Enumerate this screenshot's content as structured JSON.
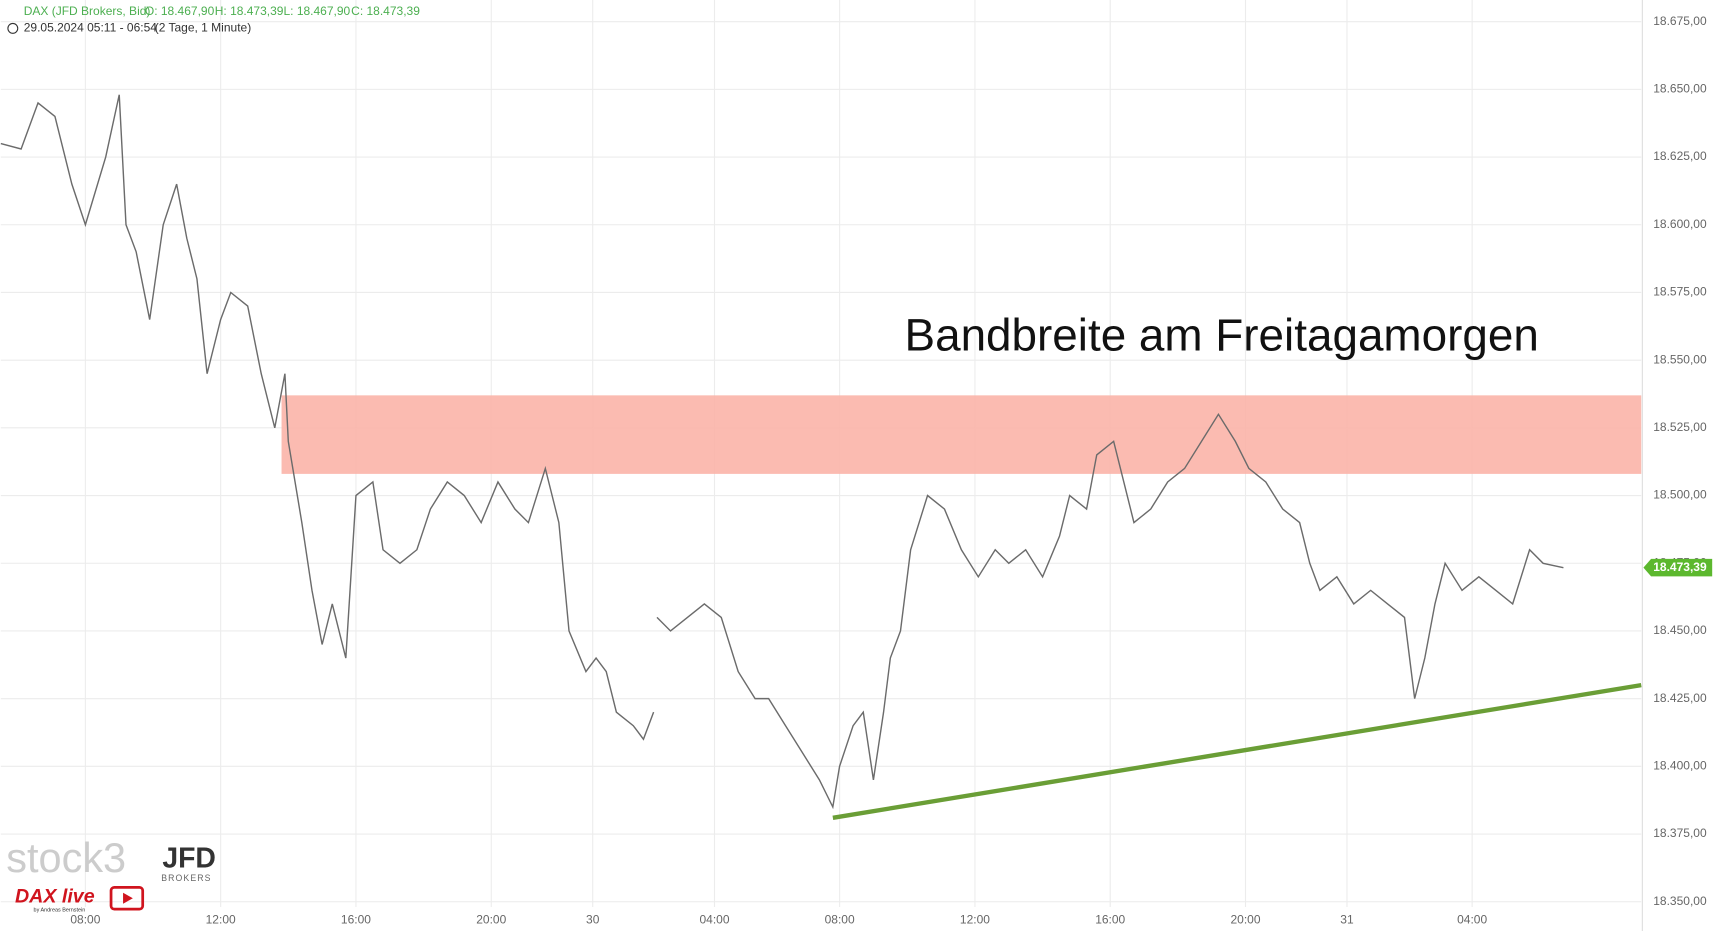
{
  "chart_data": {
    "type": "line",
    "instrument": "DAX (JFD Brokers, Bid)",
    "ohlc": [
      "O: 18.467,90",
      "H: 18.473,39",
      "L: 18.467,90",
      "C: 18.473,39"
    ],
    "period": "29.05.2024 05:11 - 06:54",
    "interval": "(2 Tage, 1 Minute)",
    "annotation": "Bandbreite am Freitagamorgen",
    "watermarks": [
      "stock3",
      "JFD",
      "BROKERS",
      "DAX live",
      "by Andreas Bernstein"
    ],
    "last_price": {
      "value": 18473.39,
      "label": "18.473,39"
    },
    "series": [
      {
        "name": "DAX",
        "color": "#6b6b6b",
        "x": [
          0,
          0.6,
          1.1,
          1.6,
          2.1,
          2.5,
          3.1,
          3.5,
          3.7,
          4.0,
          4.4,
          4.8,
          5.2,
          5.5,
          5.8,
          6.1,
          6.5,
          6.8,
          7.3,
          7.7,
          8.1,
          8.4,
          8.5,
          8.9,
          9.2,
          9.5,
          9.8,
          10.2,
          10.5,
          11.0,
          11.3,
          11.8,
          12.3,
          12.7,
          13.2,
          13.7,
          14.2,
          14.7,
          15.2,
          15.6,
          16.1,
          16.5,
          16.8,
          17.3,
          17.6,
          17.9,
          18.2,
          18.7,
          19.0,
          19.3,
          19.35,
          19.4,
          19.8,
          20.3,
          20.8,
          21.3,
          21.8,
          22.3,
          22.7,
          23.2,
          23.7,
          24.2,
          24.6,
          24.8,
          25.2,
          25.5,
          25.8,
          26.1,
          26.3,
          26.6,
          26.9,
          27.4,
          27.9,
          28.4,
          28.9,
          29.4,
          29.8,
          30.3,
          30.8,
          31.3,
          31.6,
          32.1,
          32.4,
          32.9,
          33.2,
          33.5,
          34.0,
          34.5,
          35.0,
          35.5,
          36.0,
          36.5,
          36.9,
          37.4,
          37.9,
          38.4,
          38.7,
          39.0,
          39.5,
          40.0,
          40.5,
          41.0,
          41.5,
          41.8,
          42.1,
          42.4,
          42.7,
          43.2,
          43.7,
          44.2,
          44.7,
          45.2,
          45.6,
          46.2
        ],
        "values": [
          18630,
          18628,
          18645,
          18640,
          18615,
          18600,
          18625,
          18648,
          18600,
          18590,
          18565,
          18600,
          18615,
          18595,
          18580,
          18545,
          18565,
          18575,
          18570,
          18545,
          18525,
          18545,
          18520,
          18490,
          18465,
          18445,
          18460,
          18440,
          18500,
          18505,
          18480,
          18475,
          18480,
          18495,
          18505,
          18500,
          18490,
          18505,
          18495,
          18490,
          18510,
          18490,
          18450,
          18435,
          18440,
          18435,
          18420,
          18415,
          18410,
          18420,
          null,
          18455,
          18450,
          18455,
          18460,
          18455,
          18435,
          18425,
          18425,
          18415,
          18405,
          18395,
          18385,
          18400,
          18415,
          18420,
          18395,
          18420,
          18440,
          18450,
          18480,
          18500,
          18495,
          18480,
          18470,
          18480,
          18475,
          18480,
          18470,
          18485,
          18500,
          18495,
          18515,
          18520,
          18505,
          18490,
          18495,
          18505,
          18510,
          18520,
          18530,
          18520,
          18510,
          18505,
          18495,
          18490,
          18475,
          18465,
          18470,
          18460,
          18465,
          18460,
          18455,
          18425,
          18440,
          18460,
          18475,
          18465,
          18470,
          18465,
          18460,
          18480,
          18475,
          18473.39
        ]
      }
    ],
    "band": {
      "x": [
        8.3,
        48.5
      ],
      "y": [
        18508,
        18537
      ],
      "color": "#fbb4a8"
    },
    "trendline": {
      "x": [
        24.6,
        48.5
      ],
      "y": [
        18381,
        18430
      ],
      "color": "#6a9e36"
    },
    "xlim": [
      0,
      48.5
    ],
    "ylim": [
      18340,
      18683
    ],
    "xticks": [
      {
        "value": 2.5,
        "label": "08:00"
      },
      {
        "value": 6.5,
        "label": "12:00"
      },
      {
        "value": 10.5,
        "label": "16:00"
      },
      {
        "value": 14.5,
        "label": "20:00"
      },
      {
        "value": 17.5,
        "label": "30"
      },
      {
        "value": 21.1,
        "label": "04:00"
      },
      {
        "value": 24.8,
        "label": "08:00"
      },
      {
        "value": 28.8,
        "label": "12:00"
      },
      {
        "value": 32.8,
        "label": "16:00"
      },
      {
        "value": 36.8,
        "label": "20:00"
      },
      {
        "value": 39.8,
        "label": "31"
      },
      {
        "value": 43.5,
        "label": "04:00"
      }
    ],
    "yticks": [
      {
        "value": 18350,
        "label": "18.350,00"
      },
      {
        "value": 18375,
        "label": "18.375,00"
      },
      {
        "value": 18400,
        "label": "18.400,00"
      },
      {
        "value": 18425,
        "label": "18.425,00"
      },
      {
        "value": 18450,
        "label": "18.450,00"
      },
      {
        "value": 18475,
        "label": "18.475,00"
      },
      {
        "value": 18500,
        "label": "18.500,00"
      },
      {
        "value": 18525,
        "label": "18.525,00"
      },
      {
        "value": 18550,
        "label": "18.550,00"
      },
      {
        "value": 18575,
        "label": "18.575,00"
      },
      {
        "value": 18600,
        "label": "18.600,00"
      },
      {
        "value": 18625,
        "label": "18.625,00"
      },
      {
        "value": 18650,
        "label": "18.650,00"
      },
      {
        "value": 18675,
        "label": "18.675,00"
      }
    ],
    "grid": true
  }
}
